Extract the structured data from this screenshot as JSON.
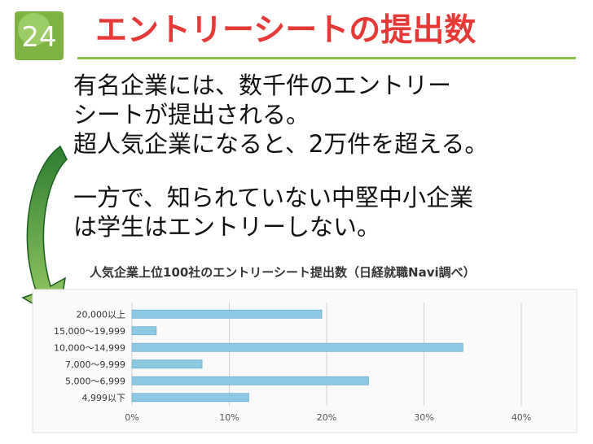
{
  "slide": {
    "number": "24",
    "title": "エントリーシートの提出数"
  },
  "body": {
    "paragraph1": [
      "有名企業には、数千件のエントリー",
      "シートが提出される。",
      "超人気企業になると、2万件を超える。"
    ],
    "paragraph2": [
      "一方で、知られていない中堅中小企業",
      "は学生はエントリーしない。"
    ]
  },
  "colors": {
    "accent_green": "#7cb342",
    "title_red": "#e53935",
    "bar_blue": "#8ec9e4"
  },
  "chart_data": {
    "type": "bar",
    "orientation": "horizontal",
    "title": "人気企業上位100社のエントリーシート提出数（日経就職Navi調べ）",
    "categories": [
      "20,000以上",
      "15,000〜19,999",
      "10,000〜14,999",
      "7,000〜9,999",
      "5,000〜6,999",
      "4,999以下"
    ],
    "values": [
      19.5,
      2.5,
      34.0,
      7.2,
      24.3,
      12.0
    ],
    "unit": "%",
    "xlim": [
      0,
      40
    ],
    "xticks": [
      "0%",
      "10%",
      "20%",
      "30%",
      "40%"
    ],
    "grid": true
  }
}
